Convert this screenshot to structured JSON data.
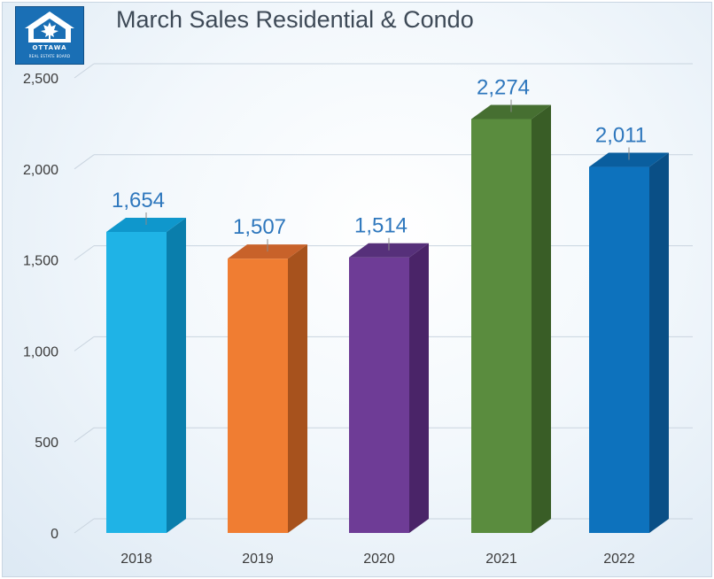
{
  "logo": {
    "name": "OTTAWA",
    "subtitle": "REAL ESTATE BOARD",
    "icon": "house-maple-leaf-icon"
  },
  "chart_data": {
    "type": "bar",
    "title": "March Sales Residential & Condo",
    "xlabel": "",
    "ylabel": "",
    "categories": [
      "2018",
      "2019",
      "2020",
      "2021",
      "2022"
    ],
    "values": [
      1654,
      1507,
      1514,
      2274,
      2011
    ],
    "value_labels": [
      "1,654",
      "1,507",
      "1,514",
      "2,274",
      "2,011"
    ],
    "ylim": [
      0,
      2500
    ],
    "yticks": [
      0,
      500,
      1000,
      1500,
      2000,
      2500
    ],
    "ytick_labels": [
      "0",
      "500",
      "1,000",
      "1,500",
      "2,000",
      "2,500"
    ],
    "grid": true,
    "style": "3d-columns",
    "colors": {
      "front": [
        "#1fb3e6",
        "#f07d32",
        "#6e3c96",
        "#5a8c3e",
        "#0d72bd"
      ],
      "side": [
        "#0a7eac",
        "#a7521d",
        "#4a2468",
        "#395d26",
        "#0a4f86"
      ],
      "top": [
        "#0f97cc",
        "#c8622a",
        "#56307a",
        "#466f31",
        "#0a5e9e"
      ],
      "value_label": "#2e77bd",
      "axis_text": "#3b3b3b",
      "grid": "#c9d4df"
    }
  }
}
